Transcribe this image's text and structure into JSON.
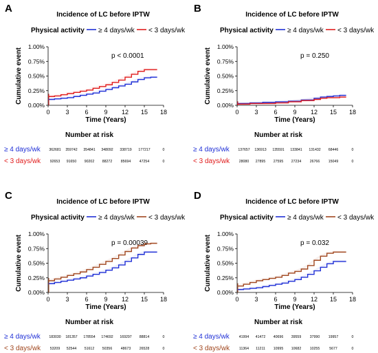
{
  "chart_data": [
    {
      "panel_label": "A",
      "type": "line",
      "title": "Incidence of LC before IPTW",
      "legend_title": "Physical activity",
      "xlabel": "Time (Years)",
      "ylabel": "Cumulative event",
      "xlim": [
        0,
        18
      ],
      "xticks": [
        "0",
        "3",
        "6",
        "9",
        "12",
        "15",
        "18"
      ],
      "ylim": [
        0,
        1.0
      ],
      "yticks": [
        "0.00%",
        "0.25%",
        "0.50%",
        "0.75%",
        "1.00%"
      ],
      "pvalue": "p < 0.0001",
      "series": [
        {
          "name": "≥ 4 days/wk",
          "color": "#1f2fd6",
          "x": [
            0,
            1,
            2,
            3,
            4,
            5,
            6,
            7,
            8,
            9,
            10,
            11,
            12,
            13,
            14,
            15,
            16,
            17
          ],
          "y": [
            0.1,
            0.11,
            0.12,
            0.13,
            0.15,
            0.17,
            0.19,
            0.21,
            0.24,
            0.27,
            0.3,
            0.33,
            0.36,
            0.4,
            0.44,
            0.47,
            0.48,
            0.48
          ]
        },
        {
          "name": "< 3 days/wk",
          "color": "#e01c1c",
          "x": [
            0,
            1,
            2,
            3,
            4,
            5,
            6,
            7,
            8,
            9,
            10,
            11,
            12,
            13,
            14,
            15,
            16,
            17
          ],
          "y": [
            0.15,
            0.16,
            0.18,
            0.2,
            0.22,
            0.24,
            0.26,
            0.29,
            0.32,
            0.35,
            0.39,
            0.43,
            0.48,
            0.53,
            0.58,
            0.61,
            0.61,
            0.61
          ]
        }
      ],
      "risk_table": {
        "title": "Number at risk",
        "rows": [
          {
            "label": "≥ 4 days/wk",
            "color": "#1f2fd6",
            "values": [
              "362681",
              "359742",
              "354841",
              "348092",
              "338719",
              "177217",
              "0"
            ]
          },
          {
            "label": "< 3 days/wk",
            "color": "#e01c1c",
            "values": [
              "92653",
              "91650",
              "90202",
              "88272",
              "85694",
              "47254",
              "0"
            ]
          }
        ]
      }
    },
    {
      "panel_label": "B",
      "type": "line",
      "title": "Incidence of LC before IPTW",
      "legend_title": "Physical activity",
      "xlabel": "Time (Years)",
      "ylabel": "Cumulative event",
      "xlim": [
        0,
        18
      ],
      "xticks": [
        "0",
        "3",
        "6",
        "9",
        "12",
        "15",
        "18"
      ],
      "ylim": [
        0,
        1.0
      ],
      "yticks": [
        "0.00%",
        "0.25%",
        "0.50%",
        "0.75%",
        "1.00%"
      ],
      "pvalue": "p = 0.250",
      "series": [
        {
          "name": "≥ 4 days/wk",
          "color": "#1f2fd6",
          "x": [
            0,
            2,
            4,
            6,
            8,
            10,
            12,
            13,
            14,
            15,
            16,
            17
          ],
          "y": [
            0.03,
            0.04,
            0.05,
            0.06,
            0.07,
            0.09,
            0.12,
            0.14,
            0.15,
            0.16,
            0.17,
            0.17
          ]
        },
        {
          "name": "< 3 days/wk",
          "color": "#e01c1c",
          "x": [
            0,
            2,
            4,
            6,
            8,
            10,
            12,
            13,
            14,
            15,
            16,
            17
          ],
          "y": [
            0.02,
            0.03,
            0.03,
            0.04,
            0.06,
            0.08,
            0.1,
            0.12,
            0.13,
            0.13,
            0.14,
            0.14
          ]
        }
      ],
      "risk_table": {
        "title": "Number at risk",
        "rows": [
          {
            "label": "≥ 4 days/wk",
            "color": "#1f2fd6",
            "values": [
              "137657",
              "136913",
              "135591",
              "133841",
              "131432",
              "68446",
              "0"
            ]
          },
          {
            "label": "< 3 days/wk",
            "color": "#e01c1c",
            "values": [
              "28080",
              "27895",
              "27595",
              "27234",
              "26766",
              "15049",
              "0"
            ]
          }
        ]
      }
    },
    {
      "panel_label": "C",
      "type": "line",
      "title": "Incidence of LC before IPTW",
      "legend_title": "Physical activity",
      "xlabel": "Time (Years)",
      "ylabel": "Cumulative event",
      "xlim": [
        0,
        18
      ],
      "xticks": [
        "0",
        "3",
        "6",
        "9",
        "12",
        "15",
        "18"
      ],
      "ylim": [
        0,
        1.0
      ],
      "yticks": [
        "0.00%",
        "0.25%",
        "0.50%",
        "0.75%",
        "1.00%"
      ],
      "pvalue": "p = 0.00039",
      "series": [
        {
          "name": "≥ 4 days/wk",
          "color": "#1f2fd6",
          "x": [
            0,
            1,
            2,
            3,
            4,
            5,
            6,
            7,
            8,
            9,
            10,
            11,
            12,
            13,
            14,
            15,
            16,
            17
          ],
          "y": [
            0.15,
            0.17,
            0.19,
            0.21,
            0.23,
            0.25,
            0.28,
            0.31,
            0.34,
            0.38,
            0.42,
            0.47,
            0.53,
            0.59,
            0.65,
            0.69,
            0.69,
            0.69
          ]
        },
        {
          "name": "< 3 days/wk",
          "color": "#a0461e",
          "x": [
            0,
            1,
            2,
            3,
            4,
            5,
            6,
            7,
            8,
            9,
            10,
            11,
            12,
            13,
            14,
            15,
            16,
            17
          ],
          "y": [
            0.2,
            0.23,
            0.26,
            0.29,
            0.32,
            0.35,
            0.39,
            0.43,
            0.48,
            0.53,
            0.58,
            0.64,
            0.7,
            0.76,
            0.8,
            0.83,
            0.84,
            0.84
          ]
        }
      ],
      "risk_table": {
        "title": "Number at risk",
        "rows": [
          {
            "label": "≥ 4 days/wk",
            "color": "#1f2fd6",
            "values": [
              "183030",
              "181357",
              "178554",
              "174692",
              "169297",
              "88814",
              "0"
            ]
          },
          {
            "label": "< 3 days/wk",
            "color": "#a0461e",
            "values": [
              "53209",
              "52544",
              "51612",
              "50356",
              "48673",
              "26528",
              "0"
            ]
          }
        ]
      }
    },
    {
      "panel_label": "D",
      "type": "line",
      "title": "Incidence of LC before IPTW",
      "legend_title": "Physical activity",
      "xlabel": "Time (Years)",
      "ylabel": "Cumulative event",
      "xlim": [
        0,
        18
      ],
      "xticks": [
        "0",
        "3",
        "6",
        "9",
        "12",
        "15",
        "18"
      ],
      "ylim": [
        0,
        1.0
      ],
      "yticks": [
        "0.00%",
        "0.25%",
        "0.50%",
        "0.75%",
        "1.00%"
      ],
      "pvalue": "p = 0.032",
      "series": [
        {
          "name": "≥ 4 days/wk",
          "color": "#1f2fd6",
          "x": [
            0,
            1,
            2,
            3,
            4,
            5,
            6,
            7,
            8,
            9,
            10,
            11,
            12,
            13,
            14,
            15,
            16,
            17
          ],
          "y": [
            0.05,
            0.06,
            0.07,
            0.08,
            0.1,
            0.12,
            0.14,
            0.16,
            0.19,
            0.22,
            0.26,
            0.31,
            0.37,
            0.43,
            0.49,
            0.53,
            0.53,
            0.53
          ]
        },
        {
          "name": "< 3 days/wk",
          "color": "#a0461e",
          "x": [
            0,
            1,
            2,
            3,
            4,
            5,
            6,
            7,
            8,
            9,
            10,
            11,
            12,
            13,
            14,
            15,
            16,
            17
          ],
          "y": [
            0.11,
            0.14,
            0.17,
            0.2,
            0.22,
            0.24,
            0.26,
            0.29,
            0.33,
            0.36,
            0.4,
            0.46,
            0.55,
            0.62,
            0.67,
            0.69,
            0.69,
            0.69
          ]
        }
      ],
      "risk_table": {
        "title": "Number at risk",
        "rows": [
          {
            "label": "≥ 4 days/wk",
            "color": "#1f2fd6",
            "values": [
              "41994",
              "41472",
              "40696",
              "39559",
              "37990",
              "19957",
              "0"
            ]
          },
          {
            "label": "< 3 days/wk",
            "color": "#a0461e",
            "values": [
              "11364",
              "11211",
              "10995",
              "10682",
              "10255",
              "5677",
              "0"
            ]
          }
        ]
      }
    }
  ]
}
